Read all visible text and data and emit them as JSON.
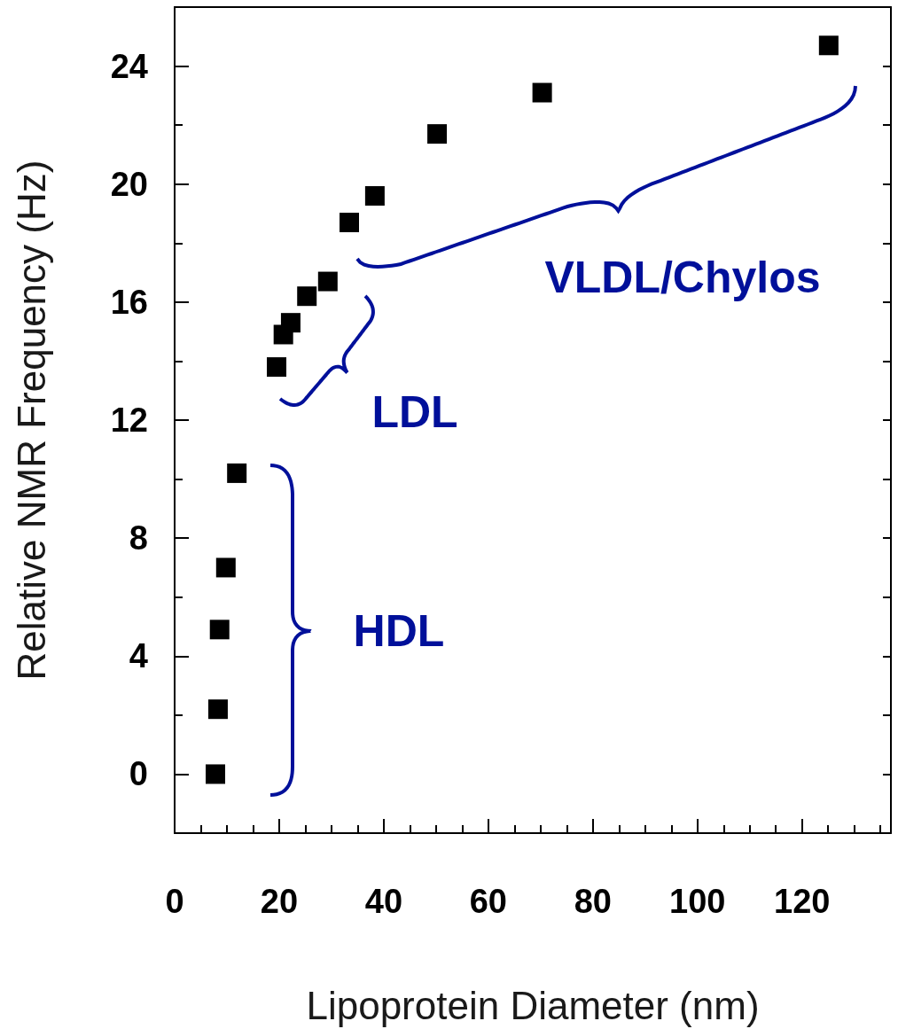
{
  "chart_data": {
    "type": "scatter",
    "xlabel": "Lipoprotein Diameter (nm)",
    "ylabel": "Relative NMR Frequency (Hz)",
    "x": [
      7.8,
      8.3,
      8.6,
      9.8,
      11.9,
      19.5,
      20.8,
      22.2,
      25.3,
      29.3,
      33.4,
      38.3,
      50.2,
      70.3,
      125.1
    ],
    "series": [
      {
        "color": "#000000",
        "values": [
          0,
          2.2,
          4.9,
          7.0,
          10.2,
          13.8,
          14.9,
          15.3,
          16.2,
          16.7,
          18.7,
          19.6,
          21.7,
          23.1,
          24.7
        ]
      }
    ],
    "marker": "square",
    "grid": false,
    "xlim": [
      0,
      137
    ],
    "ylim": [
      -2,
      26
    ],
    "xticks": [
      0,
      {
        "value": 5,
        "label": null
      },
      {
        "value": 10,
        "label": null
      },
      {
        "value": 15,
        "label": null
      },
      20,
      {
        "value": 25,
        "label": null
      },
      {
        "value": 30,
        "label": null
      },
      {
        "value": 35,
        "label": null
      },
      40,
      {
        "value": 45,
        "label": null
      },
      {
        "value": 50,
        "label": null
      },
      {
        "value": 55,
        "label": null
      },
      60,
      {
        "value": 65,
        "label": null
      },
      {
        "value": 70,
        "label": null
      },
      {
        "value": 75,
        "label": null
      },
      80,
      {
        "value": 85,
        "label": null
      },
      {
        "value": 90,
        "label": null
      },
      {
        "value": 95,
        "label": null
      },
      100,
      {
        "value": 105,
        "label": null
      },
      {
        "value": 110,
        "label": null
      },
      {
        "value": 115,
        "label": null
      },
      120,
      {
        "value": 125,
        "label": null
      },
      {
        "value": 130,
        "label": null
      },
      {
        "value": 135,
        "label": null
      }
    ],
    "yticks": [
      0,
      {
        "value": 2,
        "label": null
      },
      4,
      {
        "value": 6,
        "label": null
      },
      8,
      {
        "value": 10,
        "label": null
      },
      12,
      {
        "value": 14,
        "label": null
      },
      16,
      {
        "value": 18,
        "label": null
      },
      20,
      {
        "value": 22,
        "label": null
      },
      24
    ],
    "annotations": [
      "HDL",
      "LDL",
      "VLDL/Chylos"
    ]
  }
}
